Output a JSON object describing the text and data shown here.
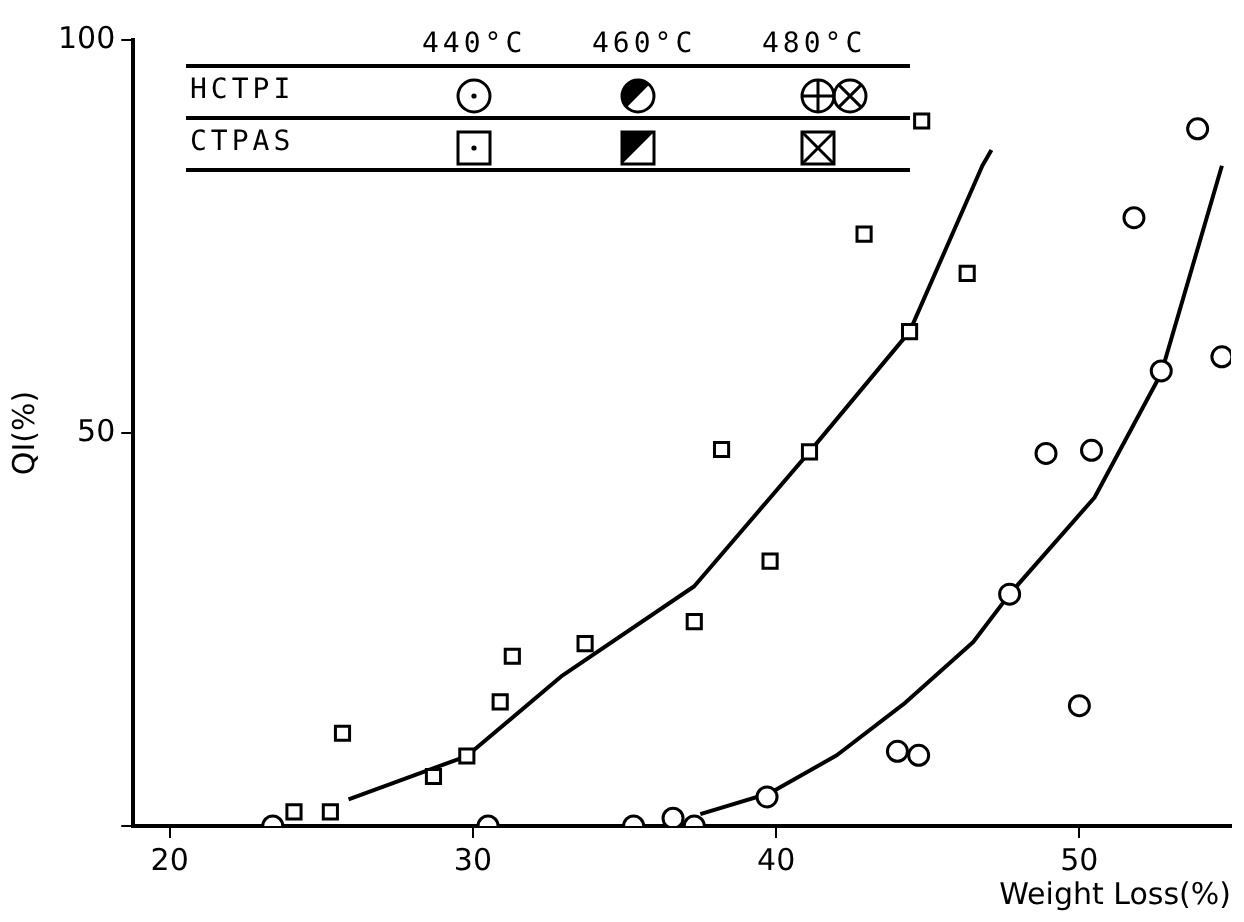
{
  "chart_data": {
    "type": "scatter",
    "xlabel": "Weight Loss(%)",
    "ylabel": "QI(%)",
    "xlim": [
      18.8,
      55
    ],
    "ylim": [
      0,
      100
    ],
    "xticks": [
      20,
      30,
      40,
      50
    ],
    "yticks": [
      {
        "value": 0,
        "label": null
      },
      50,
      100
    ],
    "grid": false,
    "legend": false,
    "annotations": [
      "440°C",
      "460°C",
      "480°C",
      "HCTPI",
      "CTPAS"
    ],
    "series": [
      {
        "marker": "circle",
        "color": "#000000",
        "x": [
          30.5,
          36.6,
          44.0,
          48.9
        ],
        "values": [
          0,
          1,
          9.5,
          47.4
        ]
      },
      {
        "type": "scatter",
        "marker": "circle",
        "color": "#000000",
        "x": [
          39.7,
          44.7,
          47.7,
          50.4,
          51.8,
          53.9,
          54.7
        ],
        "values": [
          3.7,
          9,
          29.5,
          47.8,
          77.4,
          88.7,
          59.7
        ]
      },
      {
        "type": "scatter",
        "marker": "circle",
        "color": "#000000",
        "x": [
          23.4,
          35.3,
          37.3,
          50.0,
          52.7
        ],
        "values": [
          0,
          0,
          0,
          15.3,
          57.9
        ]
      },
      {
        "type": "scatter",
        "marker": "square",
        "color": "#000000",
        "x": [
          25.7,
          30.9,
          33.7,
          41.1
        ],
        "values": [
          11.8,
          15.8,
          23.2,
          47.6
        ]
      },
      {
        "type": "scatter",
        "marker": "square",
        "color": "#000000",
        "x": [
          25.3,
          29.8,
          37.3,
          44.4,
          42.9
        ],
        "values": [
          1.8,
          8.9,
          26,
          62.9,
          75.3
        ]
      },
      {
        "type": "scatter",
        "marker": "square",
        "color": "#000000",
        "x": [
          24.1,
          28.7,
          31.3,
          38.2,
          39.8,
          46.3,
          44.8
        ],
        "values": [
          1.8,
          6.3,
          21.6,
          47.9,
          33.7,
          70.3,
          89.7
        ]
      },
      {
        "type": "line",
        "marker": "none",
        "line_style": "solid",
        "color": "#000000",
        "x": [
          25.9,
          29.8,
          32.9,
          37.3,
          41.1,
          44.4,
          46.8,
          47.1
        ],
        "values": [
          3.4,
          8.9,
          19,
          30.5,
          47.6,
          62.9,
          84,
          86
        ]
      },
      {
        "type": "line",
        "marker": "none",
        "line_style": "solid",
        "color": "#000000",
        "x": [
          37.5,
          39.8,
          42.0,
          44.2,
          46.5,
          47.7,
          50.5,
          52.7,
          54.7
        ],
        "values": [
          1.5,
          4.2,
          9,
          15.5,
          23.4,
          29.5,
          41.8,
          57.6,
          84
        ]
      }
    ]
  }
}
